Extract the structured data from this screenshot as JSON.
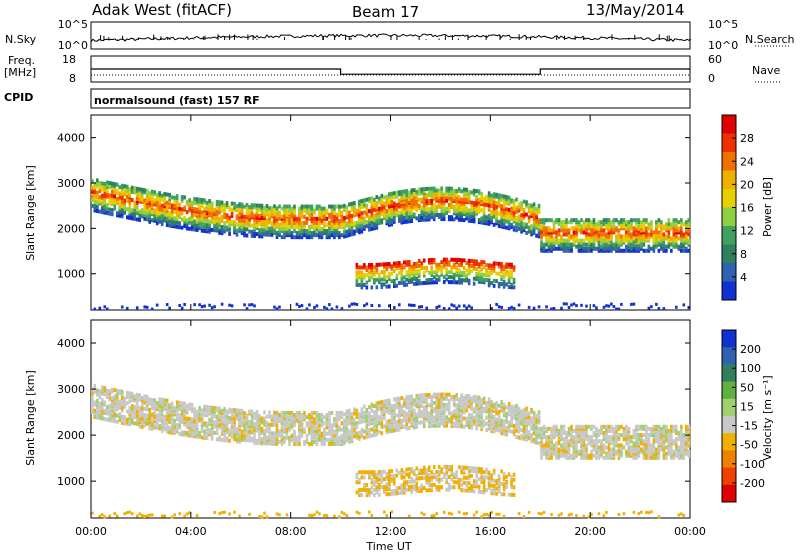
{
  "header": {
    "station": "Adak West (fitACF)",
    "beam": "Beam 17",
    "date": "13/May/2014"
  },
  "labels": {
    "nsky": "N.Sky",
    "nsearch": "N.Search",
    "freq": "Freq.",
    "mhz": "[MHz]",
    "nave": "Nave",
    "cpid": "CPID",
    "cpid_value": "normalsound (fast) 157 RF",
    "xlabel": "Time UT",
    "ylabel": "Slant Range [km]"
  },
  "chart_data": [
    {
      "type": "line",
      "panel": "noise",
      "left_ticks": [
        "10^5",
        "10^0"
      ],
      "right_ticks": [
        "10^5",
        "10^0"
      ]
    },
    {
      "type": "line",
      "panel": "frequency",
      "left_ticks": [
        "18",
        "8"
      ],
      "right_ticks": [
        "60",
        "0"
      ],
      "x": [
        "00:00",
        "10:00",
        "10:00",
        "18:00",
        "18:00",
        "24:00"
      ],
      "freq_mhz": [
        13,
        13,
        11,
        11,
        13,
        13
      ]
    },
    {
      "type": "heatmap",
      "panel": "power",
      "ylabel": "Slant Range [km]",
      "ylim": [
        200,
        4500
      ],
      "y_ticks": [
        1000,
        2000,
        3000,
        4000
      ],
      "colorbar_label": "Power [dB]",
      "colorbar_ticks": [
        "28",
        "24",
        "20",
        "16",
        "12",
        "8",
        "4"
      ],
      "colorbar_colors": [
        "#e00000",
        "#f03000",
        "#f07000",
        "#f0b000",
        "#e8d000",
        "#90d040",
        "#40a060",
        "#308060",
        "#3060b0",
        "#1030d0"
      ]
    },
    {
      "type": "heatmap",
      "panel": "velocity",
      "ylabel": "Slant Range [km]",
      "ylim": [
        200,
        4500
      ],
      "y_ticks": [
        1000,
        2000,
        3000,
        4000
      ],
      "colorbar_label": "Velocity [m s⁻¹]",
      "colorbar_ticks": [
        "200",
        "100",
        "50",
        "15",
        "-15",
        "-50",
        "-100",
        "-200"
      ],
      "colorbar_colors": [
        "#1030d0",
        "#3060b0",
        "#308060",
        "#60b040",
        "#a0d070",
        "#c8c8c8",
        "#f0b000",
        "#f08000",
        "#f04000",
        "#e00000"
      ],
      "x_ticks": [
        "00:00",
        "04:00",
        "08:00",
        "12:00",
        "16:00",
        "20:00",
        "00:00"
      ]
    }
  ]
}
